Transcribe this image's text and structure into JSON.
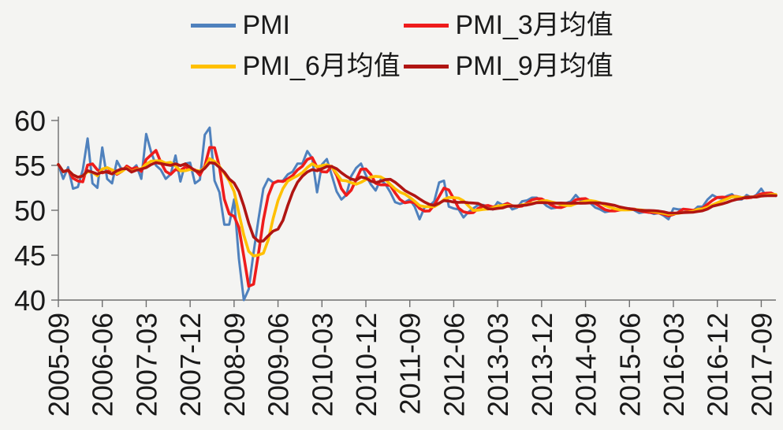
{
  "page": {
    "background": "#f4f4f2",
    "text_color": "#1a1a1a"
  },
  "legend": {
    "rows": [
      [
        {
          "label": "PMI",
          "color": "#4f81bd"
        },
        {
          "label": "PMI_3月均值",
          "color": "#ee1c1c"
        }
      ],
      [
        {
          "label": "PMI_6月均值",
          "color": "#ffc000"
        },
        {
          "label": "PMI_9月均值",
          "color": "#b01513"
        }
      ]
    ]
  },
  "chart_data": {
    "type": "line",
    "title": "",
    "xlabel": "",
    "ylabel": "",
    "ylim": [
      40,
      60
    ],
    "yticks": [
      40,
      45,
      50,
      55,
      60
    ],
    "grid": false,
    "legend_position": "top",
    "axis_color": "#6e6e6e",
    "text_color": "#1a1a1a",
    "x_start": "2005-09",
    "x_frequency": "monthly",
    "xtick_step": 9,
    "xtick_labels": [
      "2005-09",
      "2006-06",
      "2007-03",
      "2007-12",
      "2008-09",
      "2009-06",
      "2010-03",
      "2010-12",
      "2011-09",
      "2012-06",
      "2013-03",
      "2013-12",
      "2014-09",
      "2015-06",
      "2016-03",
      "2016-12",
      "2017-09"
    ],
    "series": [
      {
        "name": "PMI",
        "color": "#4f81bd",
        "values": [
          55.1,
          53.5,
          54.8,
          52.4,
          52.6,
          54.5,
          58.0,
          53.0,
          52.5,
          57.0,
          53.5,
          53.0,
          55.5,
          54.5,
          54.8,
          54.5,
          55.0,
          53.5,
          58.5,
          56.5,
          55.0,
          54.5,
          53.5,
          54.0,
          56.1,
          53.2,
          55.2,
          55.3,
          53.0,
          53.4,
          58.4,
          59.2,
          53.3,
          52.0,
          48.4,
          48.4,
          51.2,
          44.6,
          38.8,
          41.2,
          45.3,
          49.0,
          52.4,
          53.5,
          53.1,
          53.2,
          53.3,
          54.0,
          54.3,
          55.2,
          55.2,
          56.6,
          55.8,
          52.0,
          55.1,
          55.7,
          53.9,
          52.1,
          51.2,
          51.7,
          53.8,
          54.7,
          55.2,
          53.9,
          52.9,
          52.2,
          53.4,
          52.9,
          52.0,
          50.9,
          50.7,
          50.9,
          51.2,
          50.4,
          49.0,
          50.3,
          50.5,
          51.0,
          53.1,
          53.3,
          50.4,
          50.2,
          50.1,
          49.2,
          49.8,
          50.2,
          50.6,
          50.6,
          50.4,
          50.1,
          50.9,
          50.6,
          50.8,
          50.1,
          50.3,
          51.0,
          51.1,
          51.4,
          51.4,
          51.0,
          50.5,
          50.2,
          50.3,
          50.4,
          50.8,
          51.0,
          51.7,
          51.1,
          51.1,
          50.8,
          50.3,
          50.1,
          49.8,
          49.9,
          50.1,
          50.1,
          50.2,
          50.2,
          50.0,
          49.7,
          49.8,
          49.8,
          49.6,
          49.7,
          49.4,
          49.0,
          50.2,
          50.1,
          50.1,
          50.0,
          49.9,
          50.4,
          50.4,
          51.2,
          51.7,
          51.4,
          51.3,
          51.6,
          51.8,
          51.2,
          51.2,
          51.7,
          51.4,
          51.7,
          52.4,
          51.6,
          51.8,
          51.6
        ]
      },
      {
        "name": "PMI_3月均值",
        "color": "#ee1c1c",
        "derived": "moving_average_of_PMI",
        "window": 3
      },
      {
        "name": "PMI_6月均值",
        "color": "#ffc000",
        "derived": "moving_average_of_PMI",
        "window": 6
      },
      {
        "name": "PMI_9月均值",
        "color": "#b01513",
        "derived": "moving_average_of_PMI",
        "window": 9
      }
    ]
  }
}
